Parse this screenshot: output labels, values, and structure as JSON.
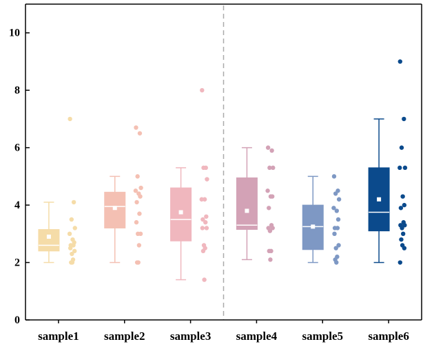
{
  "chart_data": {
    "type": "box",
    "title": "",
    "xlabel": "",
    "ylabel": "",
    "ylim": [
      0,
      11
    ],
    "yticks": [
      0,
      2,
      4,
      6,
      8,
      10
    ],
    "ytick_labels": [
      "0",
      "2",
      "4",
      "6",
      "8",
      "10"
    ],
    "grid": false,
    "legend": "none",
    "divider_after_category": "sample3",
    "categories": [
      "sample1",
      "sample2",
      "sample3",
      "sample4",
      "sample5",
      "sample6"
    ],
    "series": [
      {
        "category": "sample1",
        "color": "#f5dca8",
        "box": {
          "whisker_low": 2.0,
          "q1": 2.4,
          "median": 2.6,
          "q3": 3.15,
          "whisker_high": 4.1,
          "mean": 2.9
        },
        "points": [
          7.0,
          4.1,
          3.5,
          3.2,
          3.0,
          2.8,
          2.7,
          2.6,
          2.6,
          2.5,
          2.4,
          2.3,
          2.1,
          2.0,
          2.0
        ]
      },
      {
        "category": "sample2",
        "color": "#f4c0b3",
        "box": {
          "whisker_low": 2.0,
          "q1": 3.2,
          "median": 3.95,
          "q3": 4.45,
          "whisker_high": 5.0,
          "mean": 3.9
        },
        "points": [
          6.7,
          6.5,
          5.0,
          4.6,
          4.5,
          4.4,
          4.3,
          4.1,
          3.7,
          3.4,
          3.0,
          3.0,
          2.6,
          2.0,
          2.0
        ]
      },
      {
        "category": "sample3",
        "color": "#f0b7be",
        "box": {
          "whisker_low": 1.4,
          "q1": 2.75,
          "median": 3.5,
          "q3": 4.6,
          "whisker_high": 5.3,
          "mean": 3.75
        },
        "points": [
          8.0,
          5.3,
          5.3,
          4.9,
          4.2,
          4.2,
          3.6,
          3.5,
          3.4,
          3.2,
          3.2,
          2.6,
          2.5,
          2.4,
          1.4
        ]
      },
      {
        "category": "sample4",
        "color": "#d3a2b6",
        "box": {
          "whisker_low": 2.1,
          "q1": 3.15,
          "median": 3.3,
          "q3": 4.95,
          "whisker_high": 6.0,
          "mean": 3.8
        },
        "points": [
          6.0,
          5.9,
          5.3,
          5.3,
          4.5,
          4.3,
          4.3,
          3.9,
          3.3,
          3.2,
          3.2,
          3.1,
          2.4,
          2.4,
          2.1
        ]
      },
      {
        "category": "sample5",
        "color": "#7e98c4",
        "box": {
          "whisker_low": 2.0,
          "q1": 2.45,
          "median": 3.25,
          "q3": 4.0,
          "whisker_high": 5.0,
          "mean": 3.25
        },
        "points": [
          5.0,
          4.5,
          4.4,
          4.2,
          3.9,
          3.8,
          3.5,
          3.2,
          3.2,
          3.0,
          2.6,
          2.5,
          2.2,
          2.1,
          2.0
        ]
      },
      {
        "category": "sample6",
        "color": "#0b4a8c",
        "box": {
          "whisker_low": 2.0,
          "q1": 3.1,
          "median": 3.75,
          "q3": 5.3,
          "whisker_high": 7.0,
          "mean": 4.2
        },
        "points": [
          9.0,
          7.0,
          6.0,
          5.3,
          5.3,
          4.3,
          4.0,
          3.9,
          3.4,
          3.3,
          3.3,
          3.2,
          3.0,
          2.8,
          2.6,
          2.5,
          2.0
        ]
      }
    ]
  }
}
